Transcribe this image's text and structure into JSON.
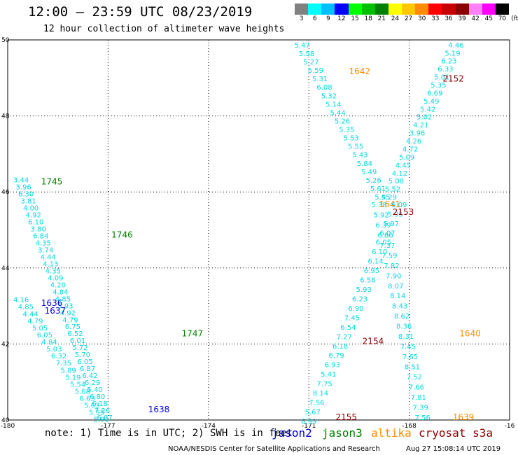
{
  "header": {
    "title": "12:00 – 23:59 UTC 08/23/2019",
    "subtitle": "12 hour collection of altimeter wave heights"
  },
  "legend": {
    "unit": "(ft)",
    "bins": [
      {
        "label": "3",
        "color": "#808080"
      },
      {
        "label": "6",
        "color": "#00ffff"
      },
      {
        "label": "9",
        "color": "#00bfff"
      },
      {
        "label": "12",
        "color": "#0000ff"
      },
      {
        "label": "15",
        "color": "#00ff00"
      },
      {
        "label": "18",
        "color": "#00c000"
      },
      {
        "label": "21",
        "color": "#008000"
      },
      {
        "label": "24",
        "color": "#ffff00"
      },
      {
        "label": "27",
        "color": "#ffc800"
      },
      {
        "label": "30",
        "color": "#ff8c00"
      },
      {
        "label": "33",
        "color": "#ff0000"
      },
      {
        "label": "36",
        "color": "#c80000"
      },
      {
        "label": "39",
        "color": "#8b0000"
      },
      {
        "label": "42",
        "color": "#ff80ff"
      },
      {
        "label": "45",
        "color": "#ff00ff"
      },
      {
        "label": "70",
        "color": "#000000"
      }
    ]
  },
  "map": {
    "lon_ticks": [
      "-180",
      "-177",
      "-174",
      "-171",
      "-168",
      "-16"
    ],
    "lat_ticks": [
      "50",
      "48",
      "46",
      "44",
      "42",
      "40"
    ],
    "lon_range": [
      -180,
      -165
    ],
    "lat_range": [
      40,
      50
    ],
    "colors": {
      "wave": "#00d8e0",
      "jason2": "#0000dd",
      "jason3": "#008000",
      "altika": "#ff8c00",
      "cryosat": "#8b0000"
    },
    "time_labels": [
      {
        "text": "1745",
        "lon": -179.0,
        "lat": 46.2,
        "sat": "jason3"
      },
      {
        "text": "1746",
        "lon": -176.9,
        "lat": 44.8,
        "sat": "jason3"
      },
      {
        "text": "1747",
        "lon": -174.8,
        "lat": 42.2,
        "sat": "jason3"
      },
      {
        "text": "1636",
        "lon": -179.0,
        "lat": 43.0,
        "sat": "jason2"
      },
      {
        "text": "1637",
        "lon": -178.9,
        "lat": 42.8,
        "sat": "jason2"
      },
      {
        "text": "1638",
        "lon": -175.8,
        "lat": 40.2,
        "sat": "jason2"
      },
      {
        "text": "1642",
        "lon": -169.8,
        "lat": 49.1,
        "sat": "altika"
      },
      {
        "text": "1641",
        "lon": -168.9,
        "lat": 45.6,
        "sat": "altika"
      },
      {
        "text": "1640",
        "lon": -166.5,
        "lat": 42.2,
        "sat": "altika"
      },
      {
        "text": "1639",
        "lon": -166.7,
        "lat": 40.0,
        "sat": "altika"
      },
      {
        "text": "2152",
        "lon": -167.0,
        "lat": 48.9,
        "sat": "cryosat"
      },
      {
        "text": "2153",
        "lon": -168.5,
        "lat": 45.4,
        "sat": "cryosat"
      },
      {
        "text": "2154",
        "lon": -169.4,
        "lat": 42.0,
        "sat": "cryosat"
      },
      {
        "text": "2155",
        "lon": -170.2,
        "lat": 40.0,
        "sat": "cryosat"
      }
    ],
    "tracks": [
      {
        "name": "track-a",
        "start": [
          -179.6,
          46.25
        ],
        "end": [
          -177.1,
          40.0
        ],
        "values": [
          "3.44",
          "3.96",
          "6.30",
          "3.81",
          "4.00",
          "4.92",
          "6.10",
          "3.80",
          "6.84",
          "4.35",
          "3.74",
          "4.44",
          "4.13",
          "4.35",
          "4.09",
          "4.20",
          "4.84",
          "4.85",
          "5.93",
          "4.92",
          "4.79",
          "6.75",
          "6.52",
          "6.01",
          "5.72",
          "5.70",
          "6.05",
          "6.87",
          "6.42",
          "6.29",
          "5.40",
          "6.80",
          "6.18",
          "7.26",
          "6.07"
        ]
      },
      {
        "name": "track-b",
        "start": [
          -179.6,
          43.1
        ],
        "end": [
          -177.2,
          39.95
        ],
        "values": [
          "4.16",
          "4.85",
          "4.44",
          "4.79",
          "5.05",
          "6.05",
          "4.84",
          "5.03",
          "6.32",
          "7.35",
          "5.89",
          "5.19",
          "5.54",
          "5.68",
          "6.63",
          "5.63",
          "5.55",
          "5.91"
        ]
      },
      {
        "name": "track-c",
        "start": [
          -171.2,
          49.8
        ],
        "end": [
          -168.8,
          45.8
        ],
        "values": [
          "5.47",
          "5.58",
          "5.27",
          "5.59",
          "5.31",
          "6.08",
          "5.32",
          "5.14",
          "5.44",
          "5.26",
          "5.35",
          "5.53",
          "5.55",
          "5.43",
          "5.84",
          "5.49",
          "5.26",
          "5.61",
          "5.45"
        ]
      },
      {
        "name": "track-d",
        "start": [
          -166.6,
          49.8
        ],
        "end": [
          -168.6,
          45.8
        ],
        "values": [
          "4.46",
          "5.19",
          "6.23",
          "6.33",
          "5.01",
          "5.35",
          "6.69",
          "5.49",
          "5.42",
          "5.02",
          "4.21",
          "3.96",
          "4.26",
          "4.72",
          "5.09",
          "4.45",
          "4.12",
          "5.08",
          "5.52",
          "5.29"
        ]
      },
      {
        "name": "track-e",
        "start": [
          -168.3,
          45.6
        ],
        "end": [
          -171.0,
          39.9
        ],
        "values": [
          "6.09",
          "5.95",
          "5.97",
          "6.07",
          "6.05",
          "6.10",
          "6.14",
          "6.95",
          "6.58",
          "5.93",
          "6.23",
          "6.90",
          "7.45",
          "6.54",
          "7.27",
          "6.18",
          "6.79",
          "6.93",
          "5.41",
          "7.75",
          "8.14",
          "7.56",
          "5.67",
          "6.99"
        ]
      },
      {
        "name": "track-f",
        "start": [
          -168.9,
          45.6
        ],
        "end": [
          -167.6,
          40.0
        ],
        "values": [
          "5.38",
          "5.92",
          "6.39",
          "6.86",
          "7.37",
          "7.59",
          "7.82",
          "7.90",
          "8.07",
          "8.14",
          "8.43",
          "8.62",
          "8.36",
          "8.31",
          "7.45",
          "7.65",
          "8.51",
          "7.52",
          "7.66",
          "7.81",
          "7.39",
          "7.56"
        ]
      }
    ]
  },
  "footer": {
    "note": "note:  1) Time is in UTC; 2) SWH is in feet",
    "satellites": [
      {
        "name": "jason2",
        "color": "#0000dd"
      },
      {
        "name": "jason3",
        "color": "#008000"
      },
      {
        "name": "altika",
        "color": "#ff8c00"
      },
      {
        "name": "cryosat s3a",
        "color": "#8b0000"
      }
    ],
    "credit": "NOAA/NESDIS Center for Satellite Applications and Research",
    "timestamp": "Aug 27 15:08:14 UTC 2019"
  }
}
